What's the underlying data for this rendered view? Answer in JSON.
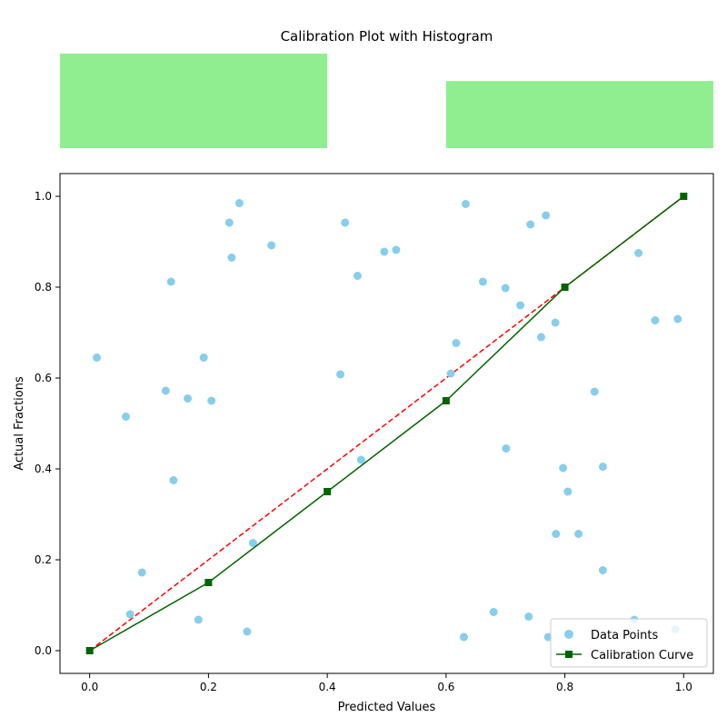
{
  "chart_data": {
    "type": "scatter",
    "title": "Calibration Plot with Histogram",
    "xlabel": "Predicted Values",
    "ylabel": "Actual Fractions",
    "xlim": [
      -0.05,
      1.05
    ],
    "ylim": [
      -0.05,
      1.05
    ],
    "xticks": [
      "0.0",
      "0.2",
      "0.4",
      "0.6",
      "0.8",
      "1.0"
    ],
    "yticks": [
      "0.0",
      "0.2",
      "0.4",
      "0.6",
      "0.8",
      "1.0"
    ],
    "grid": false,
    "legend_position": "lower-right",
    "histogram": {
      "bins": [
        {
          "from": -0.05,
          "to": 0.4,
          "count": 2
        },
        {
          "from": 0.4,
          "to": 0.6,
          "count": 0
        },
        {
          "from": 0.6,
          "to": 1.05,
          "count": 1.42
        }
      ],
      "max_count": 2,
      "color": "#90ee90"
    },
    "series": [
      {
        "name": "Data Points",
        "kind": "scatter",
        "color": "#87ceeb",
        "points": [
          [
            0.012,
            0.645
          ],
          [
            0.061,
            0.515
          ],
          [
            0.068,
            0.08
          ],
          [
            0.088,
            0.172
          ],
          [
            0.128,
            0.572
          ],
          [
            0.137,
            0.812
          ],
          [
            0.141,
            0.375
          ],
          [
            0.165,
            0.555
          ],
          [
            0.183,
            0.068
          ],
          [
            0.192,
            0.645
          ],
          [
            0.205,
            0.55
          ],
          [
            0.235,
            0.942
          ],
          [
            0.239,
            0.865
          ],
          [
            0.252,
            0.985
          ],
          [
            0.265,
            0.042
          ],
          [
            0.275,
            0.237
          ],
          [
            0.306,
            0.892
          ],
          [
            0.422,
            0.608
          ],
          [
            0.43,
            0.942
          ],
          [
            0.451,
            0.825
          ],
          [
            0.457,
            0.42
          ],
          [
            0.496,
            0.878
          ],
          [
            0.516,
            0.882
          ],
          [
            0.608,
            0.61
          ],
          [
            0.617,
            0.677
          ],
          [
            0.63,
            0.03
          ],
          [
            0.633,
            0.983
          ],
          [
            0.662,
            0.812
          ],
          [
            0.68,
            0.085
          ],
          [
            0.7,
            0.798
          ],
          [
            0.701,
            0.445
          ],
          [
            0.725,
            0.76
          ],
          [
            0.739,
            0.075
          ],
          [
            0.742,
            0.938
          ],
          [
            0.76,
            0.69
          ],
          [
            0.768,
            0.958
          ],
          [
            0.772,
            0.03
          ],
          [
            0.784,
            0.722
          ],
          [
            0.785,
            0.257
          ],
          [
            0.797,
            0.402
          ],
          [
            0.805,
            0.35
          ],
          [
            0.823,
            0.257
          ],
          [
            0.85,
            0.57
          ],
          [
            0.864,
            0.405
          ],
          [
            0.864,
            0.177
          ],
          [
            0.917,
            0.068
          ],
          [
            0.924,
            0.875
          ],
          [
            0.952,
            0.727
          ],
          [
            0.986,
            0.047
          ],
          [
            0.99,
            0.73
          ]
        ]
      },
      {
        "name": "Calibration Curve",
        "kind": "line",
        "color": "#006400",
        "marker": "square",
        "points": [
          [
            0.0,
            0.0
          ],
          [
            0.2,
            0.15
          ],
          [
            0.4,
            0.35
          ],
          [
            0.6,
            0.55
          ],
          [
            0.8,
            0.8
          ],
          [
            1.0,
            1.0
          ]
        ]
      },
      {
        "kind": "reference",
        "color": "#ff0000",
        "dash": "dashed",
        "points": [
          [
            0.0,
            0.0
          ],
          [
            1.0,
            1.0
          ]
        ]
      }
    ]
  }
}
